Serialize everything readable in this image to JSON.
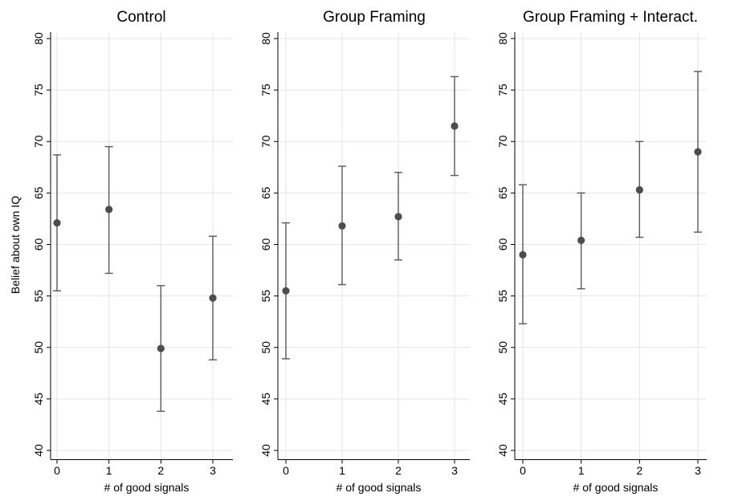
{
  "chart_data": [
    {
      "type": "scatter",
      "title": "Control",
      "xlabel": "# of good signals",
      "ylabel": "Belief about own IQ",
      "x": [
        0,
        1,
        2,
        3
      ],
      "y": [
        62.1,
        63.4,
        49.9,
        54.8
      ],
      "ci_low": [
        55.5,
        57.2,
        43.8,
        48.8
      ],
      "ci_high": [
        68.7,
        69.5,
        56.0,
        60.8
      ],
      "x_ticks": [
        0,
        1,
        2,
        3
      ],
      "y_ticks": [
        40,
        45,
        50,
        55,
        60,
        65,
        70,
        75,
        80
      ],
      "ylim": [
        40,
        80
      ],
      "grid": true
    },
    {
      "type": "scatter",
      "title": "Group Framing",
      "xlabel": "# of good signals",
      "ylabel": "",
      "x": [
        0,
        1,
        2,
        3
      ],
      "y": [
        55.5,
        61.8,
        62.7,
        71.5
      ],
      "ci_low": [
        48.9,
        56.1,
        58.5,
        66.7
      ],
      "ci_high": [
        62.1,
        67.6,
        67.0,
        76.3
      ],
      "x_ticks": [
        0,
        1,
        2,
        3
      ],
      "y_ticks": [
        40,
        45,
        50,
        55,
        60,
        65,
        70,
        75,
        80
      ],
      "ylim": [
        40,
        80
      ],
      "grid": true
    },
    {
      "type": "scatter",
      "title": "Group Framing + Interact.",
      "xlabel": "# of good signals",
      "ylabel": "",
      "x": [
        0,
        1,
        2,
        3
      ],
      "y": [
        59.0,
        60.4,
        65.3,
        69.0
      ],
      "ci_low": [
        52.3,
        55.7,
        60.7,
        61.2
      ],
      "ci_high": [
        65.8,
        65.0,
        70.0,
        76.8
      ],
      "x_ticks": [
        0,
        1,
        2,
        3
      ],
      "y_ticks": [
        40,
        45,
        50,
        55,
        60,
        65,
        70,
        75,
        80
      ],
      "ylim": [
        40,
        80
      ],
      "grid": true
    }
  ],
  "colors": {
    "marker": "#4d4d4d",
    "errorbar": "#595959",
    "grid": "#e4e4e4",
    "axis": "#000000"
  }
}
